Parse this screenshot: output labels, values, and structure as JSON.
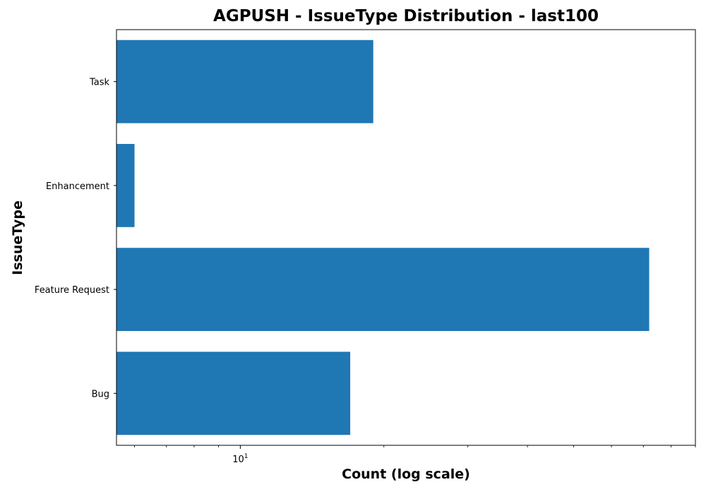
{
  "chart_data": {
    "type": "bar",
    "orientation": "horizontal",
    "title": "AGPUSH - IssueType Distribution - last100",
    "xlabel": "Count (log scale)",
    "ylabel": "IssueType",
    "x_scale": "log",
    "xlim": [
      5.5,
      90
    ],
    "categories": [
      "Bug",
      "Feature Request",
      "Enhancement",
      "Task"
    ],
    "values": [
      17,
      72,
      6,
      19
    ],
    "x_tick_labels": [
      "10^1"
    ],
    "grid": false,
    "legend": "none",
    "bar_color": "#1f77b4"
  }
}
